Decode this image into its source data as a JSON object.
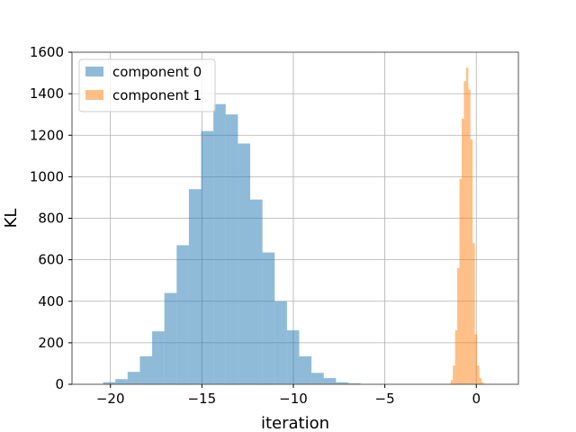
{
  "chart_data": {
    "type": "histogram",
    "xlabel": "iteration",
    "ylabel": "KL",
    "xlim": [
      -22.1,
      2.3
    ],
    "ylim": [
      0,
      1600
    ],
    "xticks": [
      -20,
      -15,
      -10,
      -5,
      0
    ],
    "xtick_labels": [
      "−20",
      "−15",
      "−10",
      "−5",
      "0"
    ],
    "yticks": [
      0,
      200,
      400,
      600,
      800,
      1000,
      1200,
      1400,
      1600
    ],
    "ytick_labels": [
      "0",
      "200",
      "400",
      "600",
      "800",
      "1000",
      "1200",
      "1400",
      "1600"
    ],
    "grid": true,
    "legend_position": "top-left",
    "series": [
      {
        "name": "component 0",
        "color": "#1f77b4",
        "alpha": 0.5,
        "bin_edges": [
          -20.4,
          -19.73,
          -19.06,
          -18.39,
          -17.72,
          -17.05,
          -16.38,
          -15.71,
          -15.04,
          -14.37,
          -13.7,
          -13.03,
          -12.36,
          -11.69,
          -11.02,
          -10.35,
          -9.68,
          -9.01,
          -8.34,
          -7.67,
          -7.0,
          -6.33,
          -5.66
        ],
        "counts": [
          10,
          25,
          60,
          135,
          255,
          440,
          670,
          940,
          1220,
          1350,
          1300,
          1160,
          890,
          635,
          400,
          260,
          135,
          55,
          30,
          10,
          5,
          2
        ]
      },
      {
        "name": "component 1",
        "color": "#ff7f0e",
        "alpha": 0.5,
        "bin_edges": [
          -1.4,
          -1.28,
          -1.16,
          -1.04,
          -0.92,
          -0.8,
          -0.68,
          -0.56,
          -0.44,
          -0.32,
          -0.2,
          -0.08,
          0.04,
          0.16,
          0.28,
          0.4,
          0.52
        ],
        "counts": [
          20,
          90,
          260,
          560,
          990,
          1280,
          1460,
          1525,
          1420,
          1180,
          680,
          240,
          90,
          30,
          10,
          3
        ]
      }
    ]
  }
}
